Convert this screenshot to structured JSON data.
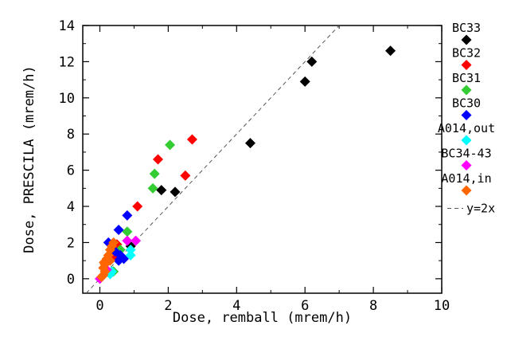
{
  "chart_data": {
    "type": "scatter",
    "xlabel": "Dose, remball (mrem/h)",
    "ylabel": "Dose, PRESCILA (mrem/h)",
    "xlim": [
      -0.5,
      10
    ],
    "ylim": [
      -0.8,
      14
    ],
    "xticks": [
      0,
      2,
      4,
      6,
      8,
      10
    ],
    "yticks": [
      0,
      2,
      4,
      6,
      8,
      10,
      12,
      14
    ],
    "grid": false,
    "legend_position": "right",
    "series": [
      {
        "name": "BC33",
        "color": "#000000",
        "marker": "diamond",
        "points": [
          [
            8.5,
            12.6
          ],
          [
            6.2,
            12.0
          ],
          [
            6.0,
            10.9
          ],
          [
            4.4,
            7.5
          ],
          [
            2.2,
            4.8
          ],
          [
            1.8,
            4.9
          ],
          [
            0.9,
            1.8
          ],
          [
            0.5,
            1.6
          ]
        ]
      },
      {
        "name": "BC32",
        "color": "#ff0000",
        "marker": "diamond",
        "points": [
          [
            2.7,
            7.7
          ],
          [
            1.7,
            6.6
          ],
          [
            2.5,
            5.7
          ],
          [
            1.1,
            4.0
          ],
          [
            0.5,
            1.9
          ],
          [
            0.4,
            1.2
          ]
        ]
      },
      {
        "name": "BC31",
        "color": "#33cc33",
        "marker": "diamond",
        "points": [
          [
            2.05,
            7.4
          ],
          [
            1.6,
            5.8
          ],
          [
            1.55,
            5.0
          ],
          [
            0.8,
            2.6
          ],
          [
            0.6,
            1.6
          ],
          [
            0.4,
            0.4
          ]
        ]
      },
      {
        "name": "BC30",
        "color": "#0000ff",
        "marker": "diamond",
        "points": [
          [
            0.8,
            3.5
          ],
          [
            0.55,
            2.7
          ],
          [
            0.25,
            2.0
          ],
          [
            0.45,
            1.5
          ],
          [
            0.6,
            1.3
          ],
          [
            0.55,
            1.0
          ],
          [
            0.7,
            1.1
          ]
        ]
      },
      {
        "name": "A014,out",
        "color": "#00ffff",
        "marker": "diamond",
        "points": [
          [
            0.9,
            1.6
          ],
          [
            0.9,
            1.3
          ],
          [
            0.35,
            0.4
          ],
          [
            0.3,
            0.25
          ]
        ]
      },
      {
        "name": "BC34-43",
        "color": "#ff00ff",
        "marker": "diamond",
        "points": [
          [
            1.05,
            2.1
          ],
          [
            0.8,
            2.1
          ],
          [
            0.0,
            0.0
          ],
          [
            0.2,
            0.5
          ]
        ]
      },
      {
        "name": "A014,in",
        "color": "#ff6600",
        "marker": "diamond",
        "points": [
          [
            0.4,
            2.0
          ],
          [
            0.35,
            1.8
          ],
          [
            0.3,
            1.6
          ],
          [
            0.25,
            1.3
          ],
          [
            0.3,
            1.0
          ],
          [
            0.2,
            1.1
          ],
          [
            0.15,
            0.8
          ],
          [
            0.1,
            0.6
          ],
          [
            0.15,
            0.4
          ],
          [
            0.1,
            0.2
          ],
          [
            0.05,
            0.1
          ],
          [
            0.12,
            0.9
          ]
        ]
      }
    ],
    "reference_line": {
      "name": "y=2x",
      "slope": 2,
      "style": "dashed",
      "color": "#555555"
    }
  }
}
